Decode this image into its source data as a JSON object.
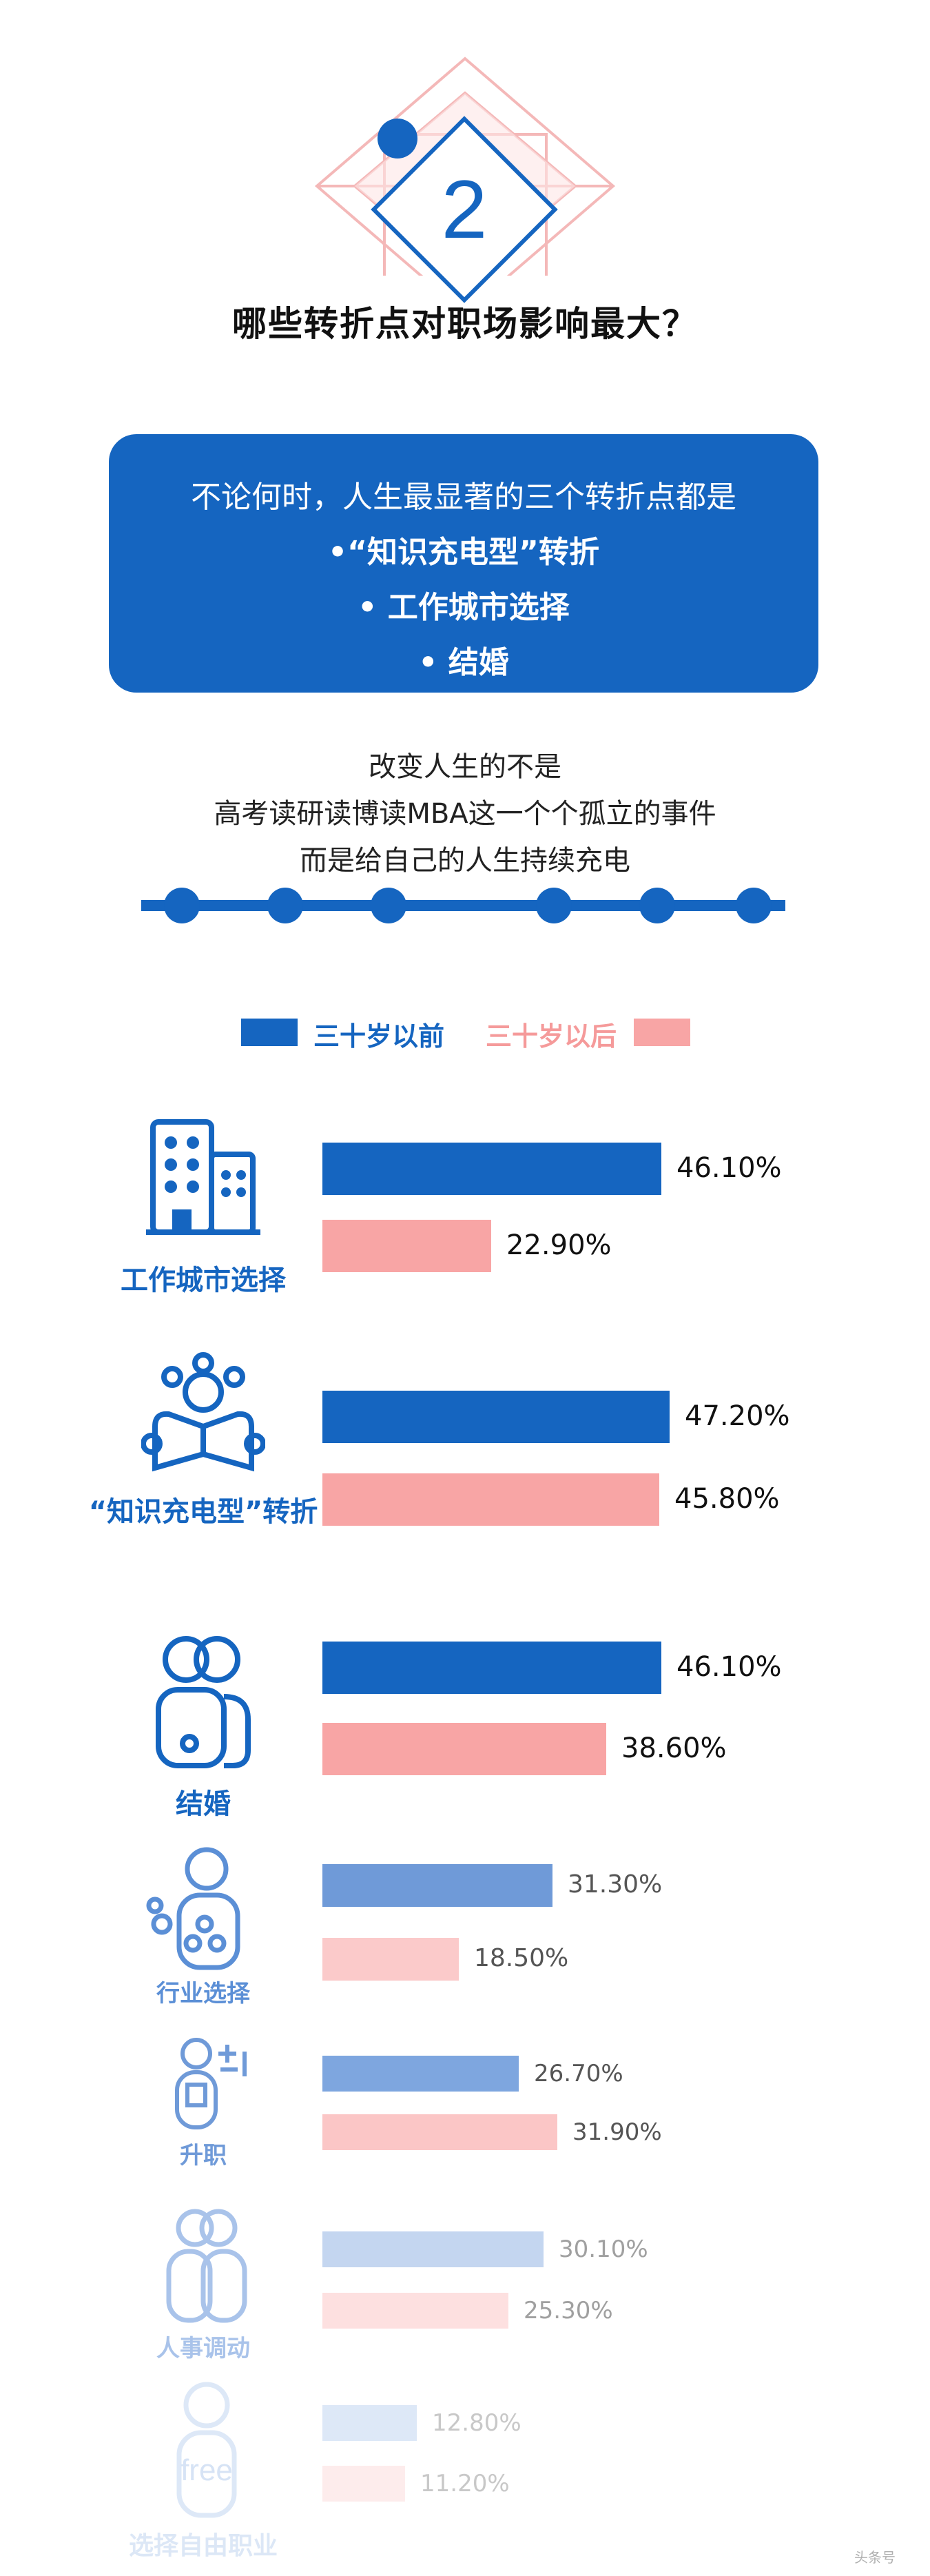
{
  "header": {
    "section_number": "2",
    "title": "哪些转折点对职场影响最大？"
  },
  "summary_box": {
    "intro": "不论何时，人生最显著的三个转折点都是",
    "items": [
      "•“知识充电型”转折",
      "• 工作城市选择",
      "• 结婚"
    ]
  },
  "quote": {
    "lines": [
      "改变人生的不是",
      "高考读研读博读MBA这一个个孤立的事件",
      "而是给自己的人生持续充电"
    ]
  },
  "colors": {
    "blue": "#1565c0",
    "pink": "#f8a5a5"
  },
  "chart_data": {
    "type": "bar",
    "orientation": "horizontal",
    "legend": [
      "三十岁以前",
      "三十岁以后"
    ],
    "categories": [
      "工作城市选择",
      "“知识充电型”转折",
      "结婚",
      "行业选择",
      "升职",
      "人事调动",
      "选择自由职业"
    ],
    "series": [
      {
        "name": "三十岁以前",
        "values": [
          46.1,
          47.2,
          46.1,
          31.3,
          26.7,
          30.1,
          12.8
        ]
      },
      {
        "name": "三十岁以后",
        "values": [
          22.9,
          45.8,
          38.6,
          18.5,
          31.9,
          25.3,
          11.2
        ]
      }
    ],
    "value_labels": [
      [
        "46.10%",
        "22.90%"
      ],
      [
        "47.20%",
        "45.80%"
      ],
      [
        "46.10%",
        "38.60%"
      ],
      [
        "31.30%",
        "18.50%"
      ],
      [
        "26.70%",
        "31.90%"
      ],
      [
        "30.10%",
        "25.30%"
      ],
      [
        "12.80%",
        "11.20%"
      ]
    ],
    "unit": "%"
  },
  "icons": [
    "buildings-icon",
    "reading-person-icon",
    "couple-icon",
    "person-bubbles-icon",
    "person-plus-icon",
    "two-people-icon",
    "free-person-icon"
  ],
  "icon_texts": {
    "free": "free"
  },
  "watermark": "头条号"
}
